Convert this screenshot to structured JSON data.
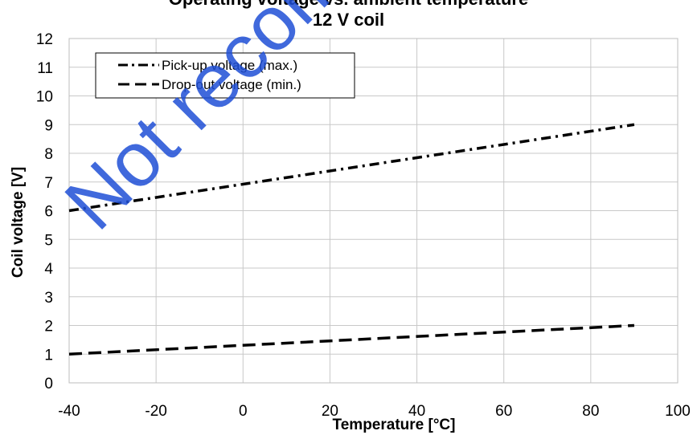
{
  "chart_data": {
    "type": "line",
    "title": "Operating voltage vs. ambient temperature",
    "subtitle": "12 V coil",
    "xlabel": "Temperature [°C]",
    "ylabel": "Coil voltage [V]",
    "xlim": [
      -40,
      100
    ],
    "ylim": [
      0,
      12
    ],
    "xticks": [
      "-40",
      "-20",
      "0",
      "20",
      "40",
      "60",
      "80",
      "100"
    ],
    "yticks": [
      "0",
      "1",
      "2",
      "3",
      "4",
      "5",
      "6",
      "7",
      "8",
      "9",
      "10",
      "11",
      "12"
    ],
    "grid": true,
    "legend_position": "top-left",
    "series": [
      {
        "name": "Pick-up voltage (max.)",
        "style": "dash-dot",
        "color": "#000000",
        "x": [
          -40,
          90
        ],
        "y": [
          6.0,
          9.0
        ]
      },
      {
        "name": "Drop-out voltage (min.)",
        "style": "dashed",
        "color": "#000000",
        "x": [
          -40,
          90
        ],
        "y": [
          1.0,
          2.0
        ]
      }
    ]
  },
  "watermark": {
    "text": "Not recommended",
    "color": "#1f4fd6"
  }
}
